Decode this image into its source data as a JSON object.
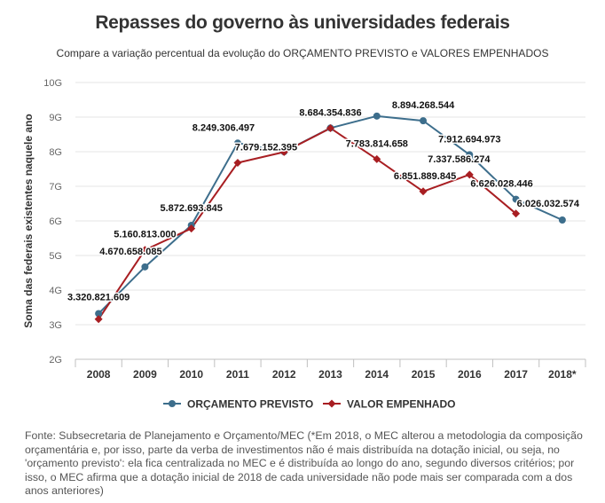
{
  "title": "Repasses do governo às universidades federais",
  "subtitle": "Compare a variação percentual da evolução do ORÇAMENTO PREVISTO e VALORES EMPENHADOS",
  "source": "Fonte: Subsecretaria de Planejamento e Orçamento/MEC (*Em 2018, o MEC alterou a metodologia da composição orçamentária e, por isso, parte da verba de investimentos não é mais distribuída na dotação inicial, ou seja, no 'orçamento previsto': ela fica centralizada no MEC e é distribuída ao longo do ano, segundo diversos critérios; por isso, o MEC afirma que a dotação inicial de 2018 de cada universidade não pode mais ser comparada com a dos anos anteriores)",
  "colors": {
    "orcamento": "#3d6e8c",
    "empenhado": "#a81e22",
    "grid": "#e6e6e6",
    "axis": "#c0c0c0"
  },
  "chart_data": {
    "type": "line",
    "ylabel": "Soma das federais existentes naquele ano",
    "ylim": [
      2000000000,
      10000000000
    ],
    "yticks": [
      {
        "value": 2000000000,
        "label": "2G"
      },
      {
        "value": 3000000000,
        "label": "3G"
      },
      {
        "value": 4000000000,
        "label": "4G"
      },
      {
        "value": 5000000000,
        "label": "5G"
      },
      {
        "value": 6000000000,
        "label": "6G"
      },
      {
        "value": 7000000000,
        "label": "7G"
      },
      {
        "value": 8000000000,
        "label": "8G"
      },
      {
        "value": 9000000000,
        "label": "9G"
      },
      {
        "value": 10000000000,
        "label": "10G"
      }
    ],
    "categories": [
      "2008",
      "2009",
      "2010",
      "2011",
      "2012",
      "2013",
      "2014",
      "2015",
      "2016",
      "2017",
      "2018*"
    ],
    "legend_position": "bottom",
    "series": [
      {
        "name": "ORÇAMENTO PREVISTO",
        "marker": "circle",
        "values": [
          3320821609,
          4670658085,
          5872693845,
          8249306497,
          8000000000,
          8684354836,
          9030000000,
          8894268544,
          7912694973,
          6626028446,
          6026032574
        ],
        "labels": [
          "3.320.821.609",
          "4.670.658.085",
          "5.872.693.845",
          "8.249.306.497",
          "",
          "8.684.354.836",
          "",
          "8.894.268.544",
          "7.912.694.973",
          "6.626.028.446",
          "6.026.032.574"
        ]
      },
      {
        "name": "VALOR EMPENHADO",
        "marker": "diamond",
        "values": [
          3160000000,
          5160813000,
          5780000000,
          7679152395,
          7990000000,
          8680000000,
          7783814658,
          6851889845,
          7337586274,
          6210000000,
          null
        ],
        "labels": [
          "",
          "5.160.813.000",
          "",
          "7.679.152.395",
          "",
          "",
          "7.783.814.658",
          "6.851.889.845",
          "7.337.586.274",
          "",
          ""
        ]
      }
    ]
  }
}
